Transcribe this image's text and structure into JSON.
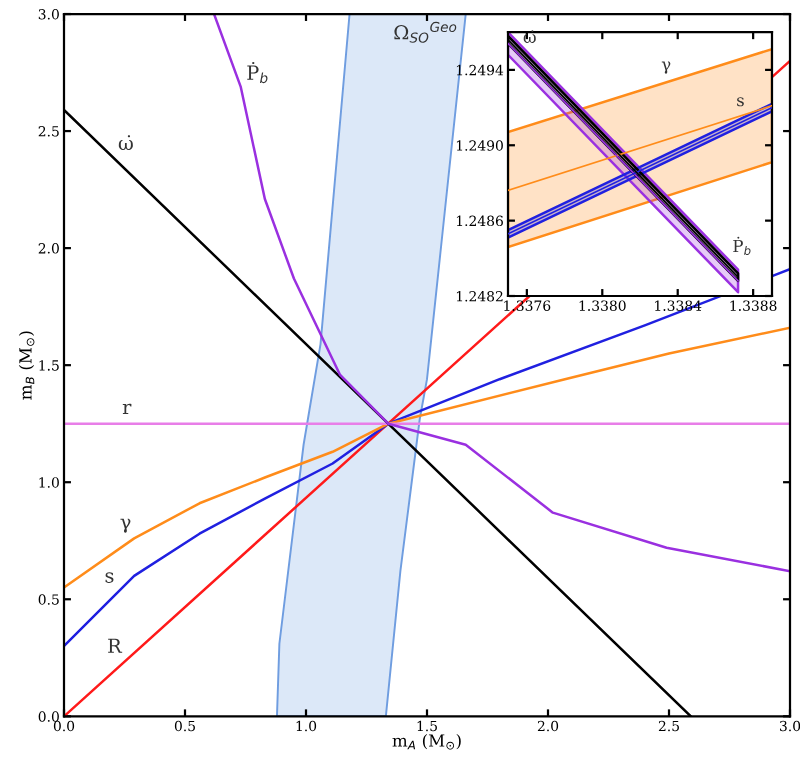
{
  "chart_data": [
    {
      "type": "line",
      "xlabel": "m$_{A}$ (M$_{⊙}$)",
      "ylabel": "m$_{B}$ (M$_{⊙}$)",
      "xlim": [
        0,
        3.0
      ],
      "ylim": [
        0,
        3.0
      ],
      "xticks": [
        {
          "value": 0,
          "label": "0.0"
        },
        0.5,
        {
          "value": 1,
          "label": "1.0"
        },
        1.5,
        {
          "value": 2,
          "label": "2.0"
        },
        2.5,
        {
          "value": 3,
          "label": "3.0"
        }
      ],
      "yticks": [
        {
          "value": 0,
          "label": "0.0"
        },
        0.5,
        {
          "value": 1,
          "label": "1.0"
        },
        1.5,
        {
          "value": 2,
          "label": "2.0"
        },
        2.5,
        {
          "value": 3,
          "label": "3.0"
        }
      ],
      "grid": false,
      "legend": false,
      "series": [
        {
          "type": "area",
          "color": "#dce8f8",
          "x": [
            0.88,
            0.89,
            0.99,
            1.06,
            1.18,
            1.66,
            1.5,
            1.47,
            1.39,
            1.33
          ],
          "values": [
            0,
            0.31,
            1.16,
            1.59,
            3.0,
            3.0,
            1.44,
            1.27,
            0.62,
            0
          ]
        },
        {
          "color": "#ff1a1a",
          "x": [
            0,
            3.0
          ],
          "values": [
            0,
            2.8
          ]
        },
        {
          "color": "#2020e0",
          "x": [
            0.0,
            0.29,
            0.56,
            0.83,
            1.11,
            1.34,
            1.8,
            2.4,
            3.0
          ],
          "values": [
            0.3,
            0.6,
            0.78,
            0.93,
            1.08,
            1.25,
            1.44,
            1.67,
            1.91
          ]
        },
        {
          "color": "#ff8c1a",
          "x": [
            0.0,
            0.29,
            0.56,
            0.83,
            1.11,
            1.34,
            2.07,
            2.5,
            3.0
          ],
          "values": [
            0.55,
            0.76,
            0.91,
            1.02,
            1.13,
            1.25,
            1.44,
            1.55,
            1.66
          ]
        },
        {
          "color": "#e87ee8",
          "x": [
            0,
            3.0
          ],
          "values": [
            1.25,
            1.25
          ]
        },
        {
          "color": "#000000",
          "x": [
            0,
            2.59
          ],
          "values": [
            2.59,
            0
          ]
        },
        {
          "color": "#9a30e0",
          "x": [
            0.62,
            0.73,
            0.83,
            0.95,
            1.14,
            1.34,
            1.66,
            2.02,
            2.49,
            3.0
          ],
          "values": [
            3.0,
            2.69,
            2.21,
            1.87,
            1.46,
            1.25,
            1.16,
            0.87,
            0.72,
            0.62
          ]
        }
      ],
      "annotations": [
        {
          "text": "ω̇",
          "x": 0.2,
          "y": 2.39
        },
        {
          "text": "Ṗ$_{b}$",
          "x": 0.73,
          "y": 2.69
        },
        {
          "text": "Ω$_{SO}$$^{Geo}$",
          "x": 1.66,
          "y": 3.0
        },
        {
          "text": "r",
          "x": 0.29,
          "y": 1.25
        },
        {
          "text": "γ",
          "x": 0.29,
          "y": 0.76
        },
        {
          "text": "s",
          "x": 0.22,
          "y": 0.53
        },
        {
          "text": "R",
          "x": 0.25,
          "y": 0.23
        }
      ]
    },
    {
      "type": "line",
      "xlim": [
        1.3375,
        1.3389
      ],
      "ylim": [
        1.2482,
        1.2496
      ],
      "xticks": [
        1.3376,
        {
          "value": 1.338,
          "label": "1.3380"
        },
        1.3384,
        1.3388
      ],
      "yticks": [
        1.2482,
        1.2486,
        {
          "value": 1.249,
          "label": "1.2490"
        },
        1.2494
      ],
      "grid": false,
      "legend": false,
      "series": [
        {
          "color": "#ff8c1a",
          "x": [
            1.3375,
            1.3389
          ],
          "values": [
            1.24876,
            1.24921
          ],
          "lower": [
            1.24846,
            1.24891
          ],
          "upper": [
            1.24907,
            1.24951
          ]
        },
        {
          "color": "#9a30e0",
          "x": [
            1.3375,
            1.33872
          ],
          "values": [
            1.24954,
            1.24828
          ],
          "lower": [
            1.24948,
            1.24822
          ],
          "upper": [
            1.2496,
            1.24834
          ]
        },
        {
          "color": "#2020e0",
          "x": [
            1.3375,
            1.3389
          ],
          "values": [
            1.24853,
            1.2492
          ],
          "lower": [
            1.24851,
            1.24918
          ],
          "upper": [
            1.24855,
            1.24922
          ]
        },
        {
          "color": "#000000",
          "x": [
            1.3375,
            1.33872
          ],
          "values": [
            1.24956,
            1.2483
          ],
          "lower": [
            1.24954,
            1.24828
          ],
          "upper": [
            1.24958,
            1.24832
          ]
        }
      ],
      "annotations": [
        {
          "text": "ω̇",
          "x": 1.33755,
          "y": 1.24951
        },
        {
          "text": "γ",
          "x": 1.33838,
          "y": 1.24935
        },
        {
          "text": "s",
          "x": 1.33877,
          "y": 1.24916
        },
        {
          "text": "Ṗ$_{b}$",
          "x": 1.33866,
          "y": 1.2484
        }
      ]
    }
  ]
}
